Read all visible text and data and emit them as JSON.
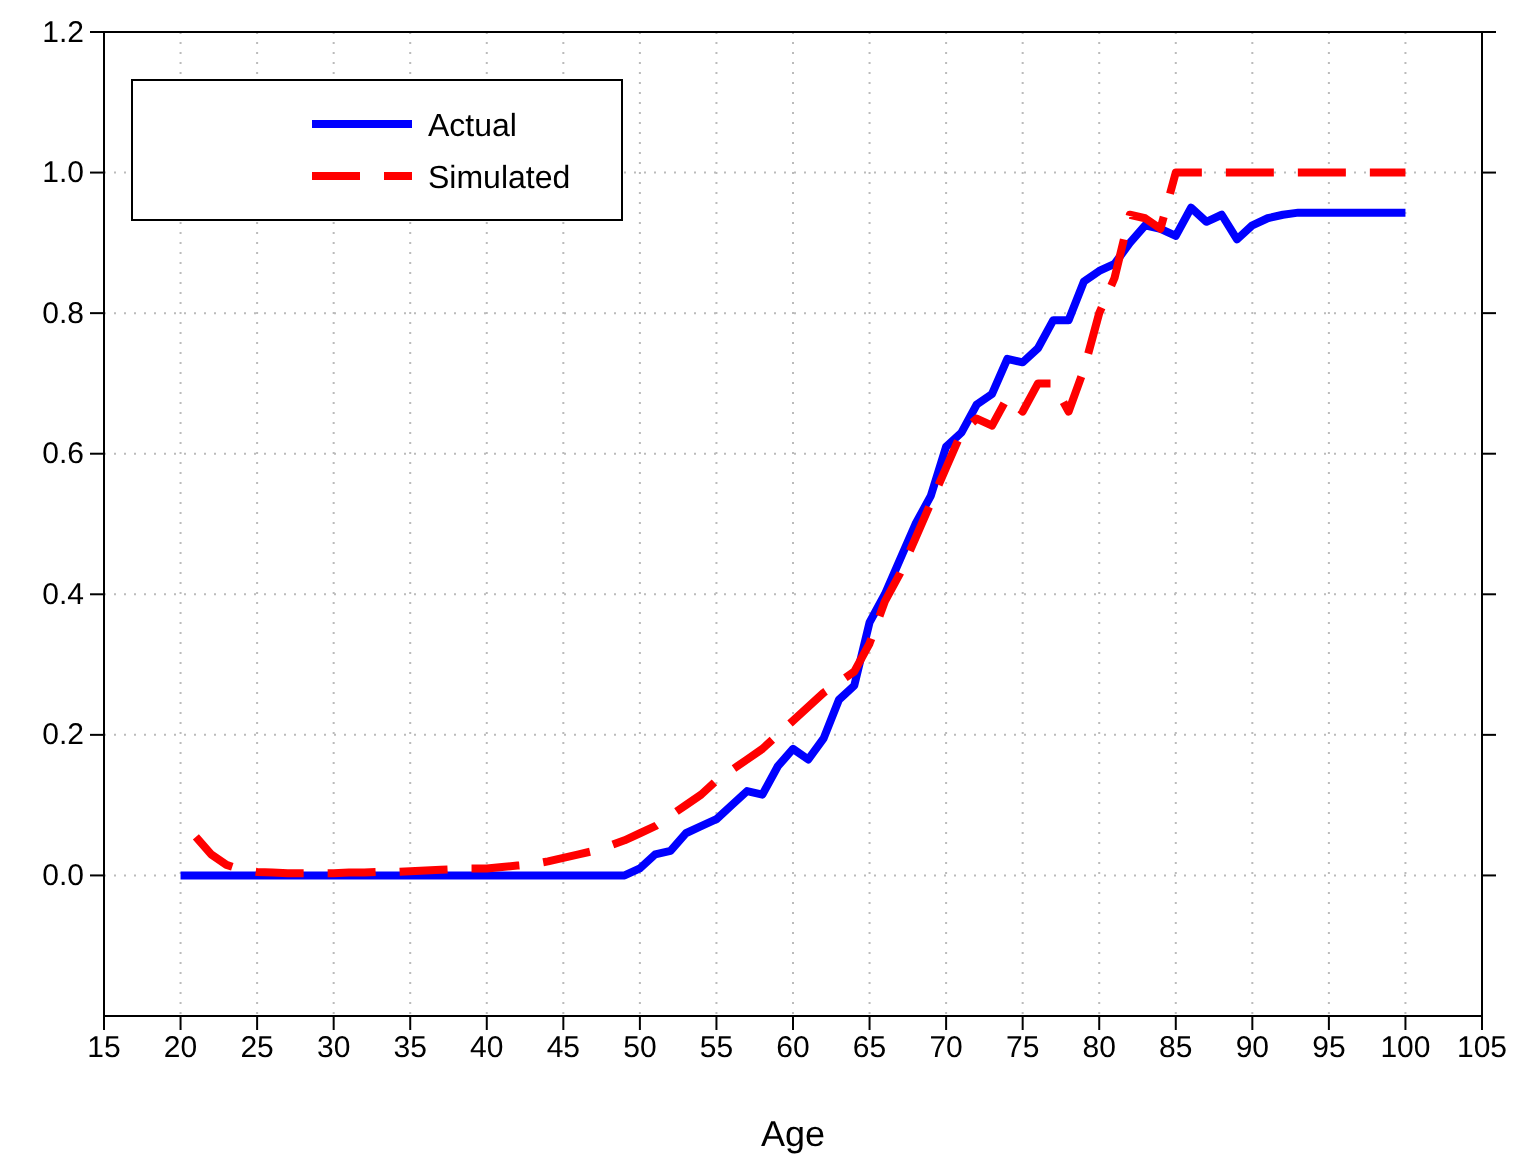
{
  "chart_data": {
    "type": "line",
    "xlabel": "Age",
    "x": [
      20,
      21,
      22,
      23,
      24,
      25,
      26,
      27,
      28,
      29,
      30,
      31,
      32,
      33,
      34,
      35,
      36,
      37,
      38,
      39,
      40,
      41,
      42,
      43,
      44,
      45,
      46,
      47,
      48,
      49,
      50,
      51,
      52,
      53,
      54,
      55,
      56,
      57,
      58,
      59,
      60,
      61,
      62,
      63,
      64,
      65,
      66,
      67,
      68,
      69,
      70,
      71,
      72,
      73,
      74,
      75,
      76,
      77,
      78,
      79,
      80,
      81,
      82,
      83,
      84,
      85,
      86,
      87,
      88,
      89,
      90,
      91,
      92,
      93,
      94,
      95,
      96,
      97,
      98,
      99,
      100
    ],
    "series": [
      {
        "name": "Actual",
        "color": "#0000ff",
        "line_style": "solid",
        "values": [
          0,
          0,
          0,
          0,
          0,
          0,
          0,
          0,
          0,
          0,
          0,
          0,
          0,
          0,
          0,
          0,
          0,
          0,
          0,
          0,
          0,
          0,
          0,
          0,
          0,
          0,
          0,
          0,
          0,
          0,
          0.01,
          0.03,
          0.035,
          0.06,
          0.07,
          0.08,
          0.1,
          0.12,
          0.115,
          0.155,
          0.18,
          0.165,
          0.195,
          0.25,
          0.27,
          0.36,
          0.4,
          0.45,
          0.5,
          0.54,
          0.61,
          0.63,
          0.67,
          0.685,
          0.735,
          0.73,
          0.75,
          0.79,
          0.79,
          0.845,
          0.86,
          0.87,
          0.9,
          0.925,
          0.92,
          0.91,
          0.95,
          0.93,
          0.94,
          0.905,
          0.925,
          0.935,
          0.94,
          0.943,
          0.943,
          0.943,
          0.943,
          0.943,
          0.943,
          0.943,
          0.943
        ]
      },
      {
        "name": "Simulated",
        "color": "#ff0000",
        "line_style": "dashed",
        "values": [
          null,
          0.055,
          0.03,
          0.015,
          0.008,
          0.005,
          0.004,
          0.003,
          0.003,
          0.003,
          0.003,
          0.004,
          0.004,
          0.005,
          0.005,
          0.006,
          0.007,
          0.008,
          0.009,
          0.01,
          0.01,
          0.012,
          0.014,
          0.016,
          0.02,
          0.025,
          0.03,
          0.035,
          0.042,
          0.05,
          0.06,
          0.07,
          0.085,
          0.1,
          0.115,
          0.135,
          0.15,
          0.165,
          0.18,
          0.2,
          0.22,
          0.24,
          0.26,
          0.275,
          0.29,
          0.33,
          0.39,
          0.43,
          0.48,
          0.53,
          0.58,
          0.63,
          0.65,
          0.64,
          0.68,
          0.66,
          0.7,
          0.7,
          0.66,
          0.72,
          0.8,
          0.85,
          0.94,
          0.935,
          0.92,
          1,
          1,
          1,
          1,
          1,
          1,
          1,
          1,
          1,
          1,
          1,
          1,
          1,
          1,
          1,
          1
        ]
      }
    ],
    "xlim": [
      15,
      105
    ],
    "xticks": [
      15,
      20,
      25,
      30,
      35,
      40,
      45,
      50,
      55,
      60,
      65,
      70,
      75,
      80,
      85,
      90,
      95,
      100,
      105
    ],
    "ylim": [
      -0.2,
      1.2
    ],
    "yticks": [
      {
        "value": 0,
        "label": "0.0"
      },
      {
        "value": 0.2,
        "label": "0.2"
      },
      {
        "value": 0.4,
        "label": "0.4"
      },
      {
        "value": 0.6,
        "label": "0.6"
      },
      {
        "value": 0.8,
        "label": "0.8"
      },
      {
        "value": 1,
        "label": "1.0"
      },
      {
        "value": 1.2,
        "label": "1.2"
      }
    ],
    "grid": true,
    "legend": "top left",
    "marker": "none"
  }
}
